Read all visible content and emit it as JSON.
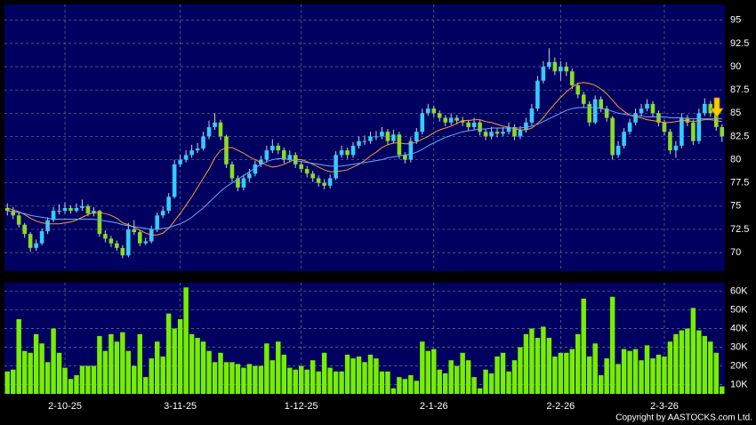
{
  "chart_data": [
    {
      "type": "candlestick",
      "up_color": "#33ccff",
      "down_color": "#88dd22",
      "open": [
        74.8,
        74.5,
        74,
        73,
        72,
        70.5,
        71,
        72.3,
        73.5,
        74.5,
        74.5,
        74.8,
        74.5,
        74.8,
        75,
        74.2,
        74.5,
        72,
        71.5,
        71,
        70.5,
        69.7,
        72.5,
        72.2,
        71,
        71.2,
        72.5,
        74,
        74.5,
        76,
        79.5,
        80,
        80.5,
        81,
        81.2,
        82.5,
        83.5,
        84,
        82.5,
        79.5,
        78,
        77,
        78,
        78.5,
        79.5,
        80,
        81,
        81.5,
        81,
        80,
        80.5,
        79.5,
        79,
        78.5,
        78,
        77.5,
        77.2,
        78,
        80.5,
        81,
        80.5,
        81.5,
        82,
        82,
        82.5,
        82.5,
        83,
        82,
        82.7,
        80.5,
        80,
        82,
        83,
        85,
        85.5,
        85,
        84.5,
        84,
        84.5,
        84.2,
        84,
        83.5,
        84,
        83,
        82.5,
        83,
        82.8,
        83,
        83.5,
        82.5,
        83.2,
        84,
        85.5,
        88.5,
        90,
        90.5,
        89.5,
        90,
        89.5,
        88,
        87,
        86,
        84,
        86.5,
        85.5,
        84.5,
        80.5,
        81.5,
        83,
        84,
        85,
        85.5,
        86,
        85,
        84,
        83,
        81,
        81.5,
        84.5,
        84,
        82,
        85,
        86,
        85,
        83.5
      ],
      "high": [
        75.3,
        74.9,
        74.3,
        73.2,
        72.2,
        71.4,
        72.6,
        73.8,
        74.9,
        75.2,
        75.4,
        75.1,
        75.3,
        75.7,
        75.2,
        74.9,
        74.6,
        72.4,
        71.8,
        71.3,
        70.8,
        73.2,
        73.5,
        72.4,
        71.6,
        72.9,
        74.3,
        75,
        76.4,
        80,
        80.5,
        81,
        81.6,
        81.8,
        83,
        84.2,
        85,
        84.3,
        82.7,
        79.8,
        78.3,
        78.4,
        79,
        79.9,
        80.4,
        81.5,
        82.2,
        81.8,
        81.3,
        81,
        80.8,
        79.8,
        79.3,
        78.8,
        78.3,
        77.9,
        78.4,
        80.9,
        81.5,
        81.3,
        81.9,
        82.5,
        82.6,
        83,
        83.1,
        83.5,
        83.3,
        83.2,
        83,
        80.8,
        82.4,
        83.4,
        85.5,
        86,
        85.8,
        85.3,
        84.8,
        85,
        84.8,
        84.6,
        84.3,
        84.5,
        84.3,
        83.3,
        83.5,
        83.4,
        83.5,
        84,
        83.8,
        83.6,
        84.5,
        86,
        89,
        90.6,
        92,
        91,
        90.6,
        90.5,
        89.8,
        88.3,
        87.3,
        86.3,
        86.9,
        86.8,
        85.8,
        84.7,
        82,
        83.4,
        84.4,
        85.5,
        86,
        86.5,
        86.3,
        85.3,
        84.3,
        83.3,
        82,
        85,
        84.8,
        84.3,
        85.5,
        86.6,
        86.3,
        85.3,
        83.8
      ],
      "low": [
        74,
        73.6,
        72.7,
        71.6,
        70.1,
        70.2,
        70.8,
        72,
        73.3,
        74.1,
        74.2,
        74.2,
        74.3,
        74.5,
        73.9,
        73.9,
        71.7,
        71.1,
        70.6,
        70.2,
        69.4,
        69.5,
        71.9,
        70.7,
        70.8,
        71,
        72.2,
        73.7,
        74.2,
        75.8,
        79.2,
        79.7,
        80.2,
        80.7,
        81,
        82.2,
        83.2,
        82.1,
        79.1,
        77.6,
        76.6,
        76.7,
        77.6,
        78.2,
        79.2,
        79.7,
        80.7,
        80.6,
        79.6,
        79.7,
        79.1,
        78.6,
        78.1,
        77.6,
        77.1,
        76.8,
        76.9,
        77.8,
        80.2,
        80.1,
        80.2,
        81.2,
        81.6,
        81.7,
        82.1,
        82.2,
        81.6,
        81.7,
        80.1,
        79.6,
        79.7,
        81.7,
        82.7,
        84.7,
        84.6,
        84.1,
        83.6,
        83.7,
        83.8,
        83.6,
        83.1,
        83.2,
        82.6,
        82.1,
        82.2,
        82.4,
        82.5,
        82.7,
        82.1,
        82.2,
        82.9,
        83.7,
        85.2,
        88.2,
        89.7,
        89.1,
        88.5,
        89,
        87.6,
        86.6,
        85.6,
        83.6,
        83.8,
        85.1,
        84.1,
        80,
        80.2,
        81.2,
        82.7,
        83.7,
        84.7,
        85.2,
        84.6,
        83.6,
        82.6,
        80.6,
        80.2,
        81.2,
        83.6,
        81.6,
        81.7,
        84.7,
        84.6,
        83.1,
        81.9
      ],
      "close": [
        74.5,
        74,
        73,
        72,
        70.5,
        71,
        72.3,
        73.5,
        74.5,
        74.5,
        74.8,
        74.5,
        74.8,
        75,
        74.2,
        74.5,
        72,
        71.5,
        71,
        70.5,
        69.7,
        72.5,
        72.2,
        71,
        71.2,
        72.5,
        74,
        74.5,
        76,
        79.5,
        80,
        80.5,
        81,
        81.2,
        82.5,
        83.5,
        84,
        82.5,
        79.5,
        78,
        77,
        78,
        78.5,
        79.5,
        80,
        81,
        81.5,
        81,
        80,
        80.5,
        79.5,
        79,
        78.5,
        78,
        77.5,
        77.2,
        78,
        80.5,
        81,
        80.5,
        81.5,
        82,
        82,
        82.5,
        82.5,
        83,
        82,
        82.7,
        80.5,
        80,
        82,
        83,
        85,
        85.5,
        85,
        84.5,
        84,
        84.5,
        84.2,
        84,
        83.5,
        84,
        83,
        82.5,
        83,
        82.8,
        83,
        83.5,
        82.5,
        83.2,
        84,
        85.5,
        88.5,
        90,
        90.5,
        89.5,
        90,
        89.5,
        88,
        87,
        86,
        84,
        86.5,
        85.5,
        84.5,
        80.5,
        81.5,
        83,
        84,
        85,
        85.5,
        86,
        85,
        84,
        83,
        81,
        81.5,
        84.5,
        84,
        82,
        85,
        86,
        85,
        83.5,
        82.5
      ],
      "lines": [
        {
          "color": "#ff9933",
          "values": [
            74.8,
            74.6,
            74.4,
            74.1,
            73.7,
            73.4,
            73.2,
            73.1,
            73.1,
            73.1,
            73.2,
            73.3,
            73.5,
            73.8,
            74.1,
            74.3,
            74.3,
            74.2,
            74,
            73.7,
            73.2,
            73,
            72.7,
            72.4,
            72.1,
            71.9,
            71.9,
            72.1,
            72.6,
            73.4,
            74.2,
            75.1,
            76,
            77,
            78,
            79,
            80.2,
            81,
            81.3,
            81.3,
            81,
            80.7,
            80.3,
            80,
            79.7,
            79.4,
            79.2,
            79.3,
            79.5,
            79.8,
            80,
            80,
            79.8,
            79.5,
            79.2,
            78.9,
            78.7,
            78.7,
            78.8,
            78.9,
            79.2,
            79.5,
            79.9,
            80.4,
            80.8,
            81.3,
            81.6,
            81.8,
            81.8,
            81.7,
            81.7,
            81.9,
            82.2,
            82.5,
            82.9,
            83.2,
            83.4,
            83.6,
            83.9,
            84.2,
            84.2,
            84.3,
            84.3,
            84.1,
            84,
            83.8,
            83.6,
            83.5,
            83.3,
            83.2,
            83.2,
            83.4,
            83.9,
            84.5,
            85.3,
            86,
            86.7,
            87.3,
            87.8,
            88.2,
            88.3,
            88.2,
            88,
            87.6,
            87.1,
            86.4,
            85.7,
            85.2,
            84.8,
            84.6,
            84.5,
            84.3,
            84.2,
            84.1,
            84,
            84,
            84.1,
            84.2,
            84.2,
            84.1,
            84.2,
            84.3,
            84.3,
            84.2,
            84.1
          ]
        },
        {
          "color": "#66aaff",
          "values": [
            74.5,
            74.4,
            74.3,
            74.2,
            74,
            73.9,
            73.8,
            73.7,
            73.6,
            73.6,
            73.6,
            73.6,
            73.6,
            73.6,
            73.6,
            73.6,
            73.5,
            73.4,
            73.3,
            73.2,
            73,
            72.9,
            72.8,
            72.7,
            72.6,
            72.5,
            72.5,
            72.6,
            72.7,
            72.9,
            73.1,
            73.4,
            73.8,
            74.3,
            74.8,
            75.4,
            76,
            76.6,
            77.1,
            77.5,
            77.9,
            78.3,
            78.7,
            79.1,
            79.5,
            79.8,
            80,
            80.1,
            80.1,
            80,
            79.9,
            79.8,
            79.7,
            79.6,
            79.5,
            79.4,
            79.3,
            79.3,
            79.3,
            79.4,
            79.5,
            79.6,
            79.7,
            79.8,
            79.9,
            80,
            80.2,
            80.3,
            80.4,
            80.5,
            80.6,
            80.8,
            81.1,
            81.5,
            81.8,
            82.1,
            82.4,
            82.6,
            82.8,
            83,
            83.1,
            83.2,
            83.3,
            83.3,
            83.4,
            83.4,
            83.4,
            83.4,
            83.4,
            83.4,
            83.5,
            83.6,
            83.8,
            84.1,
            84.4,
            84.7,
            85,
            85.3,
            85.5,
            85.6,
            85.6,
            85.6,
            85.6,
            85.5,
            85.4,
            85.2,
            85,
            84.9,
            84.8,
            84.7,
            84.7,
            84.6,
            84.6,
            84.6,
            84.6,
            84.5,
            84.5,
            84.5,
            84.4,
            84.4,
            84.4,
            84.4,
            84.4,
            84.4,
            84.4
          ]
        }
      ],
      "ylim": [
        68,
        96.7
      ],
      "yticks": [
        70,
        72.5,
        75,
        77.5,
        80,
        82.5,
        85,
        87.5,
        90,
        92.5,
        95
      ],
      "grid": true
    },
    {
      "type": "bar",
      "categories": [
        null,
        null,
        null,
        null,
        null,
        null,
        null,
        null,
        null,
        null,
        "2-10-25",
        null,
        null,
        null,
        null,
        null,
        null,
        null,
        null,
        null,
        null,
        null,
        null,
        null,
        null,
        null,
        null,
        null,
        null,
        null,
        "3-11-25",
        null,
        null,
        null,
        null,
        null,
        null,
        null,
        null,
        null,
        null,
        null,
        null,
        null,
        null,
        null,
        null,
        null,
        null,
        null,
        null,
        "1-12-25",
        null,
        null,
        null,
        null,
        null,
        null,
        null,
        null,
        null,
        null,
        null,
        null,
        null,
        null,
        null,
        null,
        null,
        null,
        null,
        null,
        null,
        null,
        "2-1-26",
        null,
        null,
        null,
        null,
        null,
        null,
        null,
        null,
        null,
        null,
        null,
        null,
        null,
        null,
        null,
        null,
        null,
        null,
        null,
        null,
        null,
        "2-2-26",
        null,
        null,
        null,
        null,
        null,
        null,
        null,
        null,
        null,
        null,
        null,
        null,
        null,
        null,
        null,
        null,
        null,
        "2-3-26",
        null,
        null,
        null,
        null,
        null,
        null,
        null,
        null,
        null,
        null
      ],
      "values": [
        17000,
        18000,
        45000,
        28000,
        27000,
        37000,
        32000,
        22000,
        40000,
        27000,
        19000,
        13000,
        15000,
        20000,
        20000,
        20000,
        36000,
        28000,
        37000,
        33000,
        38000,
        28000,
        20000,
        37000,
        14000,
        24000,
        33000,
        25000,
        48000,
        40000,
        45000,
        62000,
        37000,
        35000,
        33000,
        28000,
        22000,
        27000,
        22000,
        22000,
        21000,
        19000,
        21000,
        20000,
        20000,
        32000,
        23000,
        33000,
        26000,
        19000,
        18000,
        20000,
        18000,
        23000,
        17000,
        27000,
        19000,
        17000,
        17000,
        26000,
        24000,
        25000,
        22000,
        26000,
        24000,
        17000,
        17000,
        8000,
        14000,
        13000,
        15000,
        12000,
        33000,
        28000,
        29000,
        18000,
        16000,
        23000,
        20000,
        27000,
        23000,
        14000,
        8000,
        18000,
        16000,
        25000,
        27000,
        17000,
        23000,
        30000,
        37000,
        40000,
        35000,
        41000,
        35000,
        25000,
        27000,
        27000,
        29000,
        37000,
        56000,
        25000,
        32000,
        15000,
        24000,
        57000,
        21000,
        29000,
        28000,
        29000,
        23000,
        31000,
        24000,
        26000,
        25000,
        33000,
        37000,
        39000,
        40000,
        51000,
        39000,
        36000,
        33000,
        27000,
        9000
      ],
      "color": "#77ee00",
      "ylim": [
        5000,
        64500
      ],
      "yticks": [
        {
          "value": 10000,
          "label": "10K"
        },
        {
          "value": 20000,
          "label": "20K"
        },
        {
          "value": 30000,
          "label": "30K"
        },
        {
          "value": 40000,
          "label": "40K"
        },
        {
          "value": 50000,
          "label": "50K"
        },
        {
          "value": 60000,
          "label": "60K"
        }
      ],
      "grid": true
    }
  ],
  "copyright": "Copyright by AASTOCKS.com Ltd."
}
